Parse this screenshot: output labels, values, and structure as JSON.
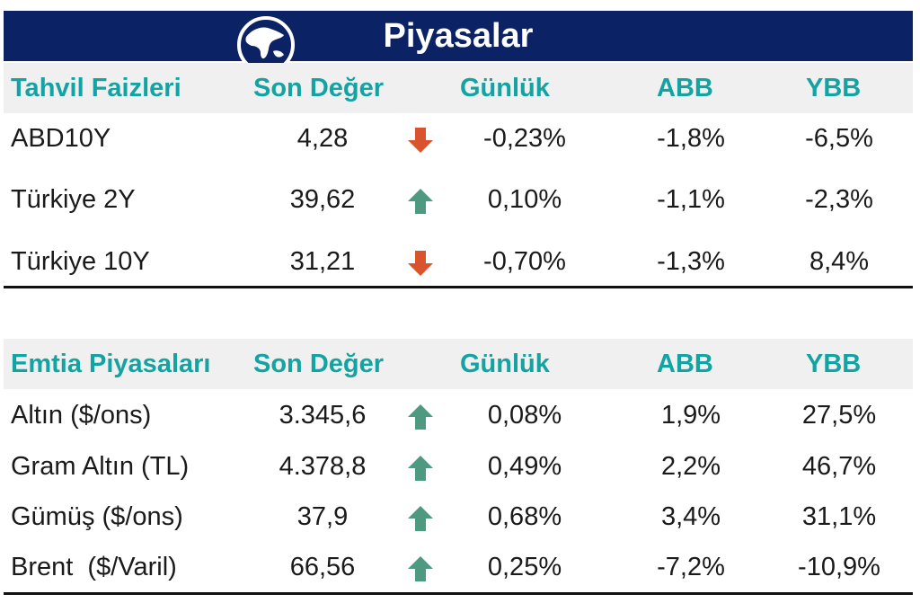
{
  "title": "Piyasalar",
  "colors": {
    "banner": "#0b2265",
    "header_text": "#13a3a3",
    "header_bg": "#f0f0f0",
    "up": "#4e9a80",
    "down": "#d9532c"
  },
  "bonds": {
    "headers": [
      "Tahvil Faizleri",
      "Son Değer",
      "Günlük",
      "ABB",
      "YBB"
    ],
    "rows": [
      {
        "name": "ABD10Y",
        "value": "4,28",
        "dir": "down",
        "daily": "-0,23%",
        "abb": "-1,8%",
        "ybb": "-6,5%"
      },
      {
        "name": "Türkiye 2Y",
        "value": "39,62",
        "dir": "up",
        "daily": "0,10%",
        "abb": "-1,1%",
        "ybb": "-2,3%"
      },
      {
        "name": "Türkiye 10Y",
        "value": "31,21",
        "dir": "down",
        "daily": "-0,70%",
        "abb": "-1,3%",
        "ybb": "8,4%"
      }
    ]
  },
  "commodities": {
    "headers": [
      "Emtia Piyasaları",
      "Son Değer",
      "Günlük",
      "ABB",
      "YBB"
    ],
    "rows": [
      {
        "name": "Altın ($/ons)",
        "value": "3.345,6",
        "dir": "up",
        "daily": "0,08%",
        "abb": "1,9%",
        "ybb": "27,5%"
      },
      {
        "name": "Gram Altın (TL)",
        "value": "4.378,8",
        "dir": "up",
        "daily": "0,49%",
        "abb": "2,2%",
        "ybb": "46,7%"
      },
      {
        "name": "Gümüş ($/ons)",
        "value": "37,9",
        "dir": "up",
        "daily": "0,68%",
        "abb": "3,4%",
        "ybb": "31,1%"
      },
      {
        "name": "Brent  ($/Varil)",
        "value": "66,56",
        "dir": "up",
        "daily": "0,25%",
        "abb": "-7,2%",
        "ybb": "-10,9%"
      }
    ]
  }
}
